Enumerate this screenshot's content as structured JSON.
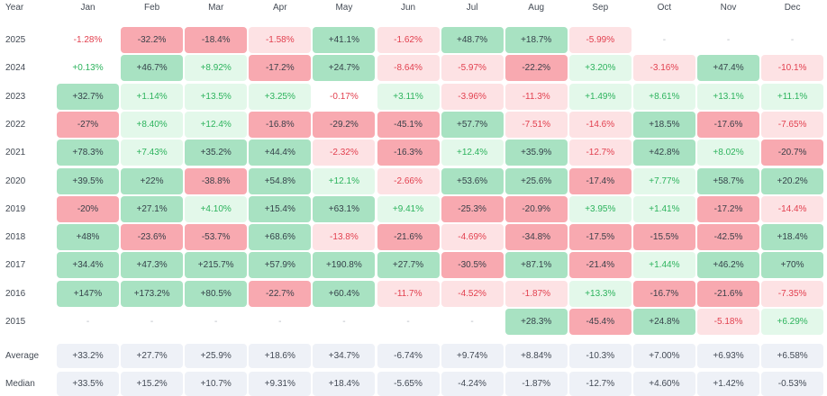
{
  "heatmap": {
    "type": "heatmap",
    "year_label": "Year",
    "months": [
      "Jan",
      "Feb",
      "Mar",
      "Apr",
      "May",
      "Jun",
      "Jul",
      "Aug",
      "Sep",
      "Oct",
      "Nov",
      "Dec"
    ],
    "rows": [
      {
        "year": "2025",
        "values": [
          "-1.28%",
          "-32.2%",
          "-18.4%",
          "-1.58%",
          "+41.1%",
          "-1.62%",
          "+48.7%",
          "+18.7%",
          "-5.99%",
          "-",
          "-",
          "-"
        ]
      },
      {
        "year": "2024",
        "values": [
          "+0.13%",
          "+46.7%",
          "+8.92%",
          "-17.2%",
          "+24.7%",
          "-8.64%",
          "-5.97%",
          "-22.2%",
          "+3.20%",
          "-3.16%",
          "+47.4%",
          "-10.1%"
        ]
      },
      {
        "year": "2023",
        "values": [
          "+32.7%",
          "+1.14%",
          "+13.5%",
          "+3.25%",
          "-0.17%",
          "+3.11%",
          "-3.96%",
          "-11.3%",
          "+1.49%",
          "+8.61%",
          "+13.1%",
          "+11.1%"
        ]
      },
      {
        "year": "2022",
        "values": [
          "-27%",
          "+8.40%",
          "+12.4%",
          "-16.8%",
          "-29.2%",
          "-45.1%",
          "+57.7%",
          "-7.51%",
          "-14.6%",
          "+18.5%",
          "-17.6%",
          "-7.65%"
        ]
      },
      {
        "year": "2021",
        "values": [
          "+78.3%",
          "+7.43%",
          "+35.2%",
          "+44.4%",
          "-2.32%",
          "-16.3%",
          "+12.4%",
          "+35.9%",
          "-12.7%",
          "+42.8%",
          "+8.02%",
          "-20.7%"
        ]
      },
      {
        "year": "2020",
        "values": [
          "+39.5%",
          "+22%",
          "-38.8%",
          "+54.8%",
          "+12.1%",
          "-2.66%",
          "+53.6%",
          "+25.6%",
          "-17.4%",
          "+7.77%",
          "+58.7%",
          "+20.2%"
        ]
      },
      {
        "year": "2019",
        "values": [
          "-20%",
          "+27.1%",
          "+4.10%",
          "+15.4%",
          "+63.1%",
          "+9.41%",
          "-25.3%",
          "-20.9%",
          "+3.95%",
          "+1.41%",
          "-17.2%",
          "-14.4%"
        ]
      },
      {
        "year": "2018",
        "values": [
          "+48%",
          "-23.6%",
          "-53.7%",
          "+68.6%",
          "-13.8%",
          "-21.6%",
          "-4.69%",
          "-34.8%",
          "-17.5%",
          "-15.5%",
          "-42.5%",
          "+18.4%"
        ]
      },
      {
        "year": "2017",
        "values": [
          "+34.4%",
          "+47.3%",
          "+215.7%",
          "+57.9%",
          "+190.8%",
          "+27.7%",
          "-30.5%",
          "+87.1%",
          "-21.4%",
          "+1.44%",
          "+46.2%",
          "+70%"
        ]
      },
      {
        "year": "2016",
        "values": [
          "+147%",
          "+173.2%",
          "+80.5%",
          "-22.7%",
          "+60.4%",
          "-11.7%",
          "-4.52%",
          "-1.87%",
          "+13.3%",
          "-16.7%",
          "-21.6%",
          "-7.35%"
        ]
      },
      {
        "year": "2015",
        "values": [
          "-",
          "-",
          "-",
          "-",
          "-",
          "-",
          "-",
          "+28.3%",
          "-45.4%",
          "+24.8%",
          "-5.18%",
          "+6.29%"
        ]
      }
    ],
    "stats": [
      {
        "label": "Average",
        "values": [
          "+33.2%",
          "+27.7%",
          "+25.9%",
          "+18.6%",
          "+34.7%",
          "-6.74%",
          "+9.74%",
          "+8.84%",
          "-10.3%",
          "+7.00%",
          "+6.93%",
          "+6.58%"
        ]
      },
      {
        "label": "Median",
        "values": [
          "+33.5%",
          "+15.2%",
          "+10.7%",
          "+9.31%",
          "+18.4%",
          "-5.65%",
          "-4.24%",
          "-1.87%",
          "-12.7%",
          "+4.60%",
          "+1.42%",
          "-0.53%"
        ]
      }
    ]
  },
  "colors": {
    "strong_pos_bg": "#a8e2c2",
    "strong_pos_fg": "#35424a",
    "light_pos_bg": "#e3f8ea",
    "light_pos_fg": "#2db35d",
    "strong_neg_bg": "#f8a9b0",
    "strong_neg_fg": "#3c4049",
    "light_neg_bg": "#fde2e4",
    "light_neg_fg": "#e2404f",
    "empty_fg": "#b5b9c0",
    "stat_bg": "#eef1f7",
    "stat_fg": "#434a55"
  }
}
